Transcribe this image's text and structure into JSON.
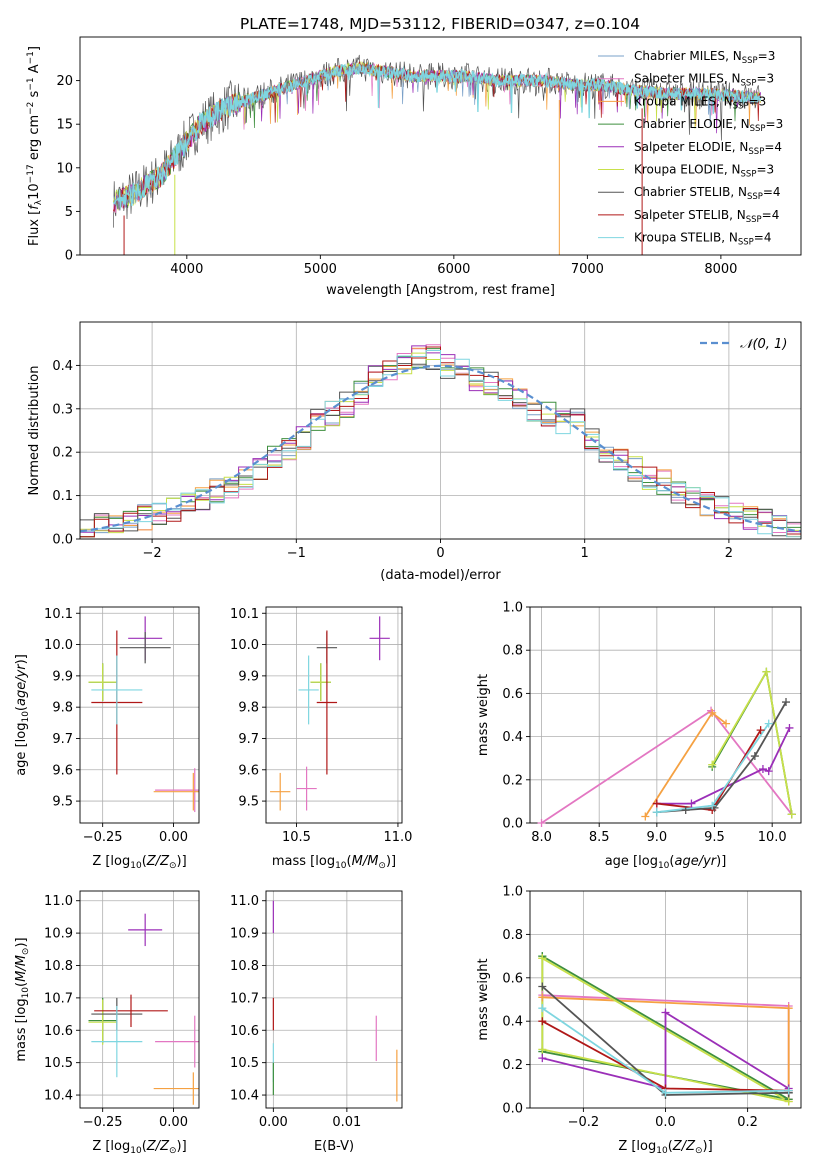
{
  "figure_title": "PLATE=1748, MJD=53112, FIBERID=0347, z=0.104",
  "model_colors": {
    "Chabrier MILES": "#7aa0c8",
    "Salpeter MILES": "#e377c2",
    "Kroupa MILES": "#f5a142",
    "Chabrier ELODIE": "#3e8f3e",
    "Salpeter ELODIE": "#9b2fb8",
    "Kroupa ELODIE": "#c8e04a",
    "Chabrier STELIB": "#555555",
    "Salpeter STELIB": "#b01818",
    "Kroupa STELIB": "#7fd6e0"
  },
  "chart_data": [
    {
      "id": "spectrum",
      "type": "line",
      "title": "PLATE=1748, MJD=53112, FIBERID=0347, z=0.104",
      "xlabel": "wavelength [Angstrom, rest frame]",
      "ylabel": "Flux [f_λ 10^-17 erg cm^-2 s^-1 A^-1]",
      "xlim": [
        3200,
        8600
      ],
      "ylim": [
        0,
        25
      ],
      "xticks": [
        4000,
        5000,
        6000,
        7000,
        8000
      ],
      "yticks": [
        0,
        5,
        10,
        15,
        20
      ],
      "legend_position": "right",
      "legend": [
        {
          "label": "Chabrier MILES, N",
          "sub": "SSP",
          "suffix": "=3"
        },
        {
          "label": "Salpeter MILES, N",
          "sub": "SSP",
          "suffix": "=3"
        },
        {
          "label": "Kroupa MILES, N",
          "sub": "SSP",
          "suffix": "=3"
        },
        {
          "label": "Chabrier ELODIE, N",
          "sub": "SSP",
          "suffix": "=3"
        },
        {
          "label": "Salpeter ELODIE, N",
          "sub": "SSP",
          "suffix": "=4"
        },
        {
          "label": "Kroupa ELODIE, N",
          "sub": "SSP",
          "suffix": "=3"
        },
        {
          "label": "Chabrier STELIB, N",
          "sub": "SSP",
          "suffix": "=4"
        },
        {
          "label": "Salpeter STELIB, N",
          "sub": "SSP",
          "suffix": "=4"
        },
        {
          "label": "Kroupa STELIB, N",
          "sub": "SSP",
          "suffix": "=4"
        }
      ],
      "data": {
        "x": [
          3450,
          3600,
          3800,
          3900,
          4000,
          4100,
          4300,
          4500,
          4700,
          4900,
          5100,
          5300,
          5500,
          5700,
          5900,
          6100,
          6300,
          6500,
          6700,
          6900,
          7100,
          7300,
          7600,
          7900,
          8300
        ],
        "y": [
          6,
          7,
          9,
          11,
          13,
          15,
          17,
          18,
          19,
          20,
          21,
          21.5,
          21,
          20.5,
          20.5,
          20.5,
          20,
          20,
          20,
          19.5,
          19.5,
          19,
          18.5,
          18.5,
          18
        ]
      }
    },
    {
      "id": "residual-histogram",
      "type": "line",
      "xlabel": "(data-model)/error",
      "ylabel": "Normed distribution",
      "xlim": [
        -2.5,
        2.5
      ],
      "ylim": [
        0,
        0.5
      ],
      "xticks": [
        -2,
        -1,
        0,
        1,
        2
      ],
      "yticks": [
        0.0,
        0.1,
        0.2,
        0.3,
        0.4
      ],
      "legend_position": "top-right",
      "legend": [
        {
          "label": "𝒩(0, 1)"
        }
      ],
      "data": {
        "bin_centers": [
          -2.45,
          -2.35,
          -2.25,
          -2.15,
          -2.05,
          -1.95,
          -1.85,
          -1.75,
          -1.65,
          -1.55,
          -1.45,
          -1.35,
          -1.25,
          -1.15,
          -1.05,
          -0.95,
          -0.85,
          -0.75,
          -0.65,
          -0.55,
          -0.45,
          -0.35,
          -0.25,
          -0.15,
          -0.05,
          0.05,
          0.15,
          0.25,
          0.35,
          0.45,
          0.55,
          0.65,
          0.75,
          0.85,
          0.95,
          1.05,
          1.15,
          1.25,
          1.35,
          1.45,
          1.55,
          1.65,
          1.75,
          1.85,
          1.95,
          2.05,
          2.15,
          2.25,
          2.35,
          2.45
        ],
        "density": [
          0.02,
          0.03,
          0.04,
          0.04,
          0.05,
          0.06,
          0.07,
          0.08,
          0.09,
          0.11,
          0.12,
          0.14,
          0.16,
          0.19,
          0.21,
          0.23,
          0.27,
          0.29,
          0.31,
          0.34,
          0.37,
          0.39,
          0.4,
          0.42,
          0.42,
          0.4,
          0.39,
          0.37,
          0.36,
          0.34,
          0.32,
          0.3,
          0.29,
          0.27,
          0.27,
          0.23,
          0.2,
          0.18,
          0.16,
          0.14,
          0.13,
          0.11,
          0.09,
          0.08,
          0.07,
          0.06,
          0.05,
          0.04,
          0.03,
          0.02
        ]
      }
    },
    {
      "id": "z-vs-age",
      "type": "scatter",
      "xlabel": "Z [log10(Z/Z⊙)]",
      "ylabel": "age [log10(age/yr)]",
      "xlim": [
        -0.33,
        0.09
      ],
      "ylim": [
        9.43,
        10.12
      ],
      "xticks": [
        -0.25,
        0.0
      ],
      "yticks": [
        9.5,
        9.6,
        9.7,
        9.8,
        9.9,
        10.0,
        10.1
      ],
      "points": [
        {
          "model": "Chabrier MILES",
          "x": -0.25,
          "y": 9.88,
          "xerr": 0.05,
          "yerr": 0.06
        },
        {
          "model": "Salpeter MILES",
          "x": 0.075,
          "y": 9.535,
          "xerr": 0.14,
          "yerr": 0.07
        },
        {
          "model": "Kroupa MILES",
          "x": 0.07,
          "y": 9.53,
          "xerr": 0.14,
          "yerr": 0.06
        },
        {
          "model": "Chabrier ELODIE",
          "x": -0.25,
          "y": 9.88,
          "xerr": 0.05,
          "yerr": 0.06
        },
        {
          "model": "Salpeter ELODIE",
          "x": -0.1,
          "y": 10.02,
          "xerr": 0.06,
          "yerr": 0.07
        },
        {
          "model": "Kroupa ELODIE",
          "x": -0.25,
          "y": 9.88,
          "xerr": 0.05,
          "yerr": 0.06
        },
        {
          "model": "Chabrier STELIB",
          "x": -0.1,
          "y": 9.99,
          "xerr": 0.09,
          "yerr": 0.05
        },
        {
          "model": "Salpeter STELIB",
          "x": -0.2,
          "y": 9.815,
          "xerr": 0.09,
          "yerr": 0.23
        },
        {
          "model": "Kroupa STELIB",
          "x": -0.2,
          "y": 9.855,
          "xerr": 0.09,
          "yerr": 0.11
        }
      ]
    },
    {
      "id": "mass-vs-age",
      "type": "scatter",
      "xlabel": "mass [log10(M/M⊙)]",
      "ylabel": "",
      "xlim": [
        10.35,
        11.02
      ],
      "ylim": [
        9.43,
        10.12
      ],
      "xticks": [
        10.5,
        11.0
      ],
      "yticks": [
        9.5,
        9.6,
        9.7,
        9.8,
        9.9,
        10.0,
        10.1
      ],
      "points": [
        {
          "model": "Chabrier MILES",
          "x": 10.62,
          "y": 9.88,
          "xerr": 0.05,
          "yerr": 0.06
        },
        {
          "model": "Salpeter MILES",
          "x": 10.55,
          "y": 9.54,
          "xerr": 0.05,
          "yerr": 0.07
        },
        {
          "model": "Kroupa MILES",
          "x": 10.42,
          "y": 9.53,
          "xerr": 0.05,
          "yerr": 0.06
        },
        {
          "model": "Chabrier ELODIE",
          "x": 10.62,
          "y": 9.88,
          "xerr": 0.05,
          "yerr": 0.06
        },
        {
          "model": "Salpeter ELODIE",
          "x": 10.91,
          "y": 10.02,
          "xerr": 0.05,
          "yerr": 0.07
        },
        {
          "model": "Kroupa ELODIE",
          "x": 10.62,
          "y": 9.88,
          "xerr": 0.05,
          "yerr": 0.06
        },
        {
          "model": "Chabrier STELIB",
          "x": 10.65,
          "y": 9.99,
          "xerr": 0.05,
          "yerr": 0.05
        },
        {
          "model": "Salpeter STELIB",
          "x": 10.65,
          "y": 9.815,
          "xerr": 0.05,
          "yerr": 0.23
        },
        {
          "model": "Kroupa STELIB",
          "x": 10.56,
          "y": 9.855,
          "xerr": 0.05,
          "yerr": 0.11
        }
      ]
    },
    {
      "id": "age-vs-mass-weight",
      "type": "line",
      "xlabel": "age [log10(age/yr)]",
      "ylabel": "mass weight",
      "xlim": [
        7.9,
        10.25
      ],
      "ylim": [
        0.0,
        1.0
      ],
      "xticks": [
        8.0,
        8.5,
        9.0,
        9.5,
        10.0
      ],
      "yticks": [
        0.0,
        0.2,
        0.4,
        0.6,
        0.8,
        1.0
      ],
      "series": [
        {
          "model": "Salpeter MILES",
          "x": [
            8.0,
            9.47,
            10.17
          ],
          "y": [
            0.0,
            0.52,
            0.04
          ]
        },
        {
          "model": "Kroupa MILES",
          "x": [
            8.9,
            9.48,
            9.6
          ],
          "y": [
            0.03,
            0.51,
            0.46
          ]
        },
        {
          "model": "Chabrier ELODIE",
          "x": [
            9.48,
            9.95,
            10.17
          ],
          "y": [
            0.26,
            0.7,
            0.04
          ]
        },
        {
          "model": "Kroupa ELODIE",
          "x": [
            9.48,
            9.95,
            10.17
          ],
          "y": [
            0.27,
            0.7,
            0.04
          ]
        },
        {
          "model": "Salpeter ELODIE",
          "x": [
            9.0,
            9.3,
            9.92,
            9.97,
            10.15
          ],
          "y": [
            0.09,
            0.09,
            0.25,
            0.24,
            0.44
          ]
        },
        {
          "model": "Salpeter STELIB",
          "x": [
            9.0,
            9.48,
            9.9
          ],
          "y": [
            0.09,
            0.06,
            0.43
          ]
        },
        {
          "model": "Chabrier STELIB",
          "x": [
            9.0,
            9.25,
            9.5,
            9.85,
            10.12
          ],
          "y": [
            0.05,
            0.06,
            0.07,
            0.31,
            0.56
          ]
        },
        {
          "model": "Kroupa STELIB",
          "x": [
            9.0,
            9.48,
            9.97
          ],
          "y": [
            0.05,
            0.08,
            0.46
          ]
        }
      ]
    },
    {
      "id": "z-vs-mass",
      "type": "scatter",
      "xlabel": "Z [log10(Z/Z⊙)]",
      "ylabel": "mass [log10(M/M⊙)]",
      "xlim": [
        -0.33,
        0.09
      ],
      "ylim": [
        10.36,
        11.03
      ],
      "xticks": [
        -0.25,
        0.0
      ],
      "yticks": [
        10.4,
        10.5,
        10.6,
        10.7,
        10.8,
        10.9,
        11.0
      ],
      "points": [
        {
          "model": "Chabrier MILES",
          "x": -0.25,
          "y": 10.63,
          "xerr": 0.05,
          "yerr": 0.07
        },
        {
          "model": "Salpeter MILES",
          "x": 0.075,
          "y": 10.565,
          "xerr": 0.14,
          "yerr": 0.08
        },
        {
          "model": "Kroupa MILES",
          "x": 0.07,
          "y": 10.42,
          "xerr": 0.14,
          "yerr": 0.05
        },
        {
          "model": "Chabrier ELODIE",
          "x": -0.25,
          "y": 10.63,
          "xerr": 0.05,
          "yerr": 0.07
        },
        {
          "model": "Salpeter ELODIE",
          "x": -0.1,
          "y": 10.91,
          "xerr": 0.06,
          "yerr": 0.05
        },
        {
          "model": "Kroupa ELODIE",
          "x": -0.25,
          "y": 10.625,
          "xerr": 0.05,
          "yerr": 0.07
        },
        {
          "model": "Chabrier STELIB",
          "x": -0.2,
          "y": 10.65,
          "xerr": 0.09,
          "yerr": 0.05
        },
        {
          "model": "Salpeter STELIB",
          "x": -0.15,
          "y": 10.66,
          "xerr": 0.13,
          "yerr": 0.05
        },
        {
          "model": "Kroupa STELIB",
          "x": -0.2,
          "y": 10.565,
          "xerr": 0.09,
          "yerr": 0.11
        }
      ]
    },
    {
      "id": "ebv-vs-mass",
      "type": "scatter",
      "xlabel": "E(B-V)",
      "ylabel": "",
      "xlim": [
        -0.001,
        0.0175
      ],
      "ylim": [
        10.36,
        11.03
      ],
      "xticks": [
        0.0,
        0.01
      ],
      "yticks": [
        10.4,
        10.5,
        10.6,
        10.7,
        10.8,
        10.9,
        11.0
      ],
      "points": [
        {
          "model": "Salpeter MILES",
          "x": 0.014,
          "y": 10.575,
          "xerr": 0.0,
          "yerr": 0.07
        },
        {
          "model": "Kroupa MILES",
          "x": 0.0168,
          "y": 10.46,
          "xerr": 0.0,
          "yerr": 0.08
        },
        {
          "model": "Salpeter ELODIE",
          "x": 0.0,
          "y": 10.95,
          "xerr": 0.0,
          "yerr": 0.05
        },
        {
          "model": "Salpeter STELIB",
          "x": 0.0,
          "y": 10.65,
          "xerr": 0.0,
          "yerr": 0.05
        },
        {
          "model": "Kroupa STELIB",
          "x": 0.0,
          "y": 10.5,
          "xerr": 0.0,
          "yerr": 0.06
        },
        {
          "model": "Chabrier ELODIE",
          "x": 0.0,
          "y": 10.45,
          "xerr": 0.0,
          "yerr": 0.05
        }
      ]
    },
    {
      "id": "z-vs-mass-weight",
      "type": "line",
      "xlabel": "Z [log10(Z/Z⊙)]",
      "ylabel": "mass weight",
      "xlim": [
        -0.33,
        0.33
      ],
      "ylim": [
        0.0,
        1.0
      ],
      "xticks": [
        -0.2,
        0.0,
        0.2
      ],
      "yticks": [
        0.0,
        0.2,
        0.4,
        0.6,
        0.8,
        1.0
      ],
      "series": [
        {
          "model": "Salpeter MILES",
          "x": [
            -0.3,
            0.3,
            0.3
          ],
          "y": [
            0.52,
            0.47,
            0.04
          ]
        },
        {
          "model": "Kroupa MILES",
          "x": [
            -0.3,
            0.3,
            0.3
          ],
          "y": [
            0.51,
            0.46,
            0.03
          ]
        },
        {
          "model": "Chabrier ELODIE",
          "x": [
            -0.3,
            0.3,
            -0.3,
            -0.3
          ],
          "y": [
            0.7,
            0.04,
            0.26,
            0.7
          ]
        },
        {
          "model": "Kroupa ELODIE",
          "x": [
            -0.3,
            0.3,
            -0.3,
            -0.3
          ],
          "y": [
            0.69,
            0.03,
            0.27,
            0.69
          ]
        },
        {
          "model": "Salpeter ELODIE",
          "x": [
            -0.3,
            0.0,
            0.0,
            0.3
          ],
          "y": [
            0.23,
            0.09,
            0.44,
            0.09
          ]
        },
        {
          "model": "Salpeter STELIB",
          "x": [
            -0.3,
            0.0,
            0.3
          ],
          "y": [
            0.4,
            0.09,
            0.08
          ]
        },
        {
          "model": "Chabrier STELIB",
          "x": [
            -0.3,
            0.0,
            0.3,
            0.3
          ],
          "y": [
            0.56,
            0.06,
            0.07,
            0.07
          ]
        },
        {
          "model": "Kroupa STELIB",
          "x": [
            -0.3,
            0.0,
            0.3
          ],
          "y": [
            0.46,
            0.07,
            0.08
          ]
        }
      ]
    }
  ]
}
